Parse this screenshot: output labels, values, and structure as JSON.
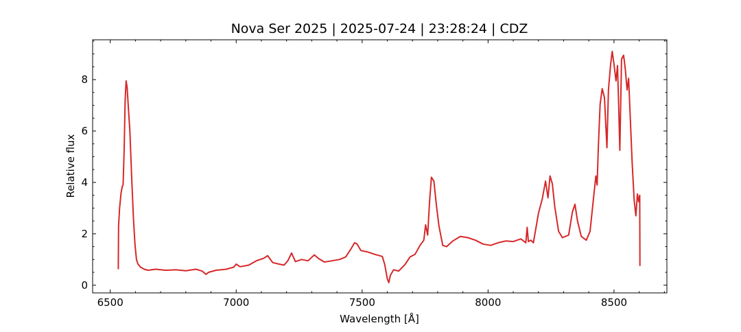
{
  "chart_data": {
    "type": "line",
    "title": "Nova Ser 2025 | 2025-07-24 | 23:28:24 | CDZ",
    "xlabel": "Wavelength [Å]",
    "ylabel": "Relative flux",
    "xlim": [
      6430,
      8710
    ],
    "ylim": [
      -0.3,
      9.55
    ],
    "x_ticks": [
      6500,
      7000,
      7500,
      8000,
      8500
    ],
    "y_ticks": [
      0,
      2,
      4,
      6,
      8
    ],
    "x_tick_labels": [
      "6500",
      "7000",
      "7500",
      "8000",
      "8500"
    ],
    "y_tick_labels": [
      "0",
      "2",
      "4",
      "6",
      "8"
    ],
    "grid": false,
    "legend": "none",
    "series": [
      {
        "color": "#d62728",
        "points": [
          [
            6532,
            0.62
          ],
          [
            6533,
            2.3
          ],
          [
            6537,
            3.0
          ],
          [
            6543,
            3.6
          ],
          [
            6548,
            3.85
          ],
          [
            6551,
            3.9
          ],
          [
            6555,
            5.2
          ],
          [
            6559,
            7.2
          ],
          [
            6563,
            7.95
          ],
          [
            6567,
            7.7
          ],
          [
            6572,
            6.9
          ],
          [
            6578,
            6.0
          ],
          [
            6585,
            4.2
          ],
          [
            6592,
            2.6
          ],
          [
            6598,
            1.6
          ],
          [
            6604,
            1.0
          ],
          [
            6610,
            0.82
          ],
          [
            6620,
            0.7
          ],
          [
            6635,
            0.62
          ],
          [
            6650,
            0.58
          ],
          [
            6680,
            0.62
          ],
          [
            6720,
            0.58
          ],
          [
            6760,
            0.6
          ],
          [
            6800,
            0.56
          ],
          [
            6840,
            0.62
          ],
          [
            6865,
            0.55
          ],
          [
            6880,
            0.42
          ],
          [
            6890,
            0.5
          ],
          [
            6920,
            0.58
          ],
          [
            6960,
            0.62
          ],
          [
            6990,
            0.7
          ],
          [
            7000,
            0.82
          ],
          [
            7015,
            0.72
          ],
          [
            7050,
            0.78
          ],
          [
            7080,
            0.95
          ],
          [
            7110,
            1.05
          ],
          [
            7125,
            1.15
          ],
          [
            7145,
            0.88
          ],
          [
            7170,
            0.82
          ],
          [
            7190,
            0.78
          ],
          [
            7205,
            0.95
          ],
          [
            7220,
            1.25
          ],
          [
            7235,
            0.92
          ],
          [
            7260,
            1.0
          ],
          [
            7285,
            0.95
          ],
          [
            7310,
            1.18
          ],
          [
            7325,
            1.05
          ],
          [
            7350,
            0.9
          ],
          [
            7380,
            0.95
          ],
          [
            7410,
            1.0
          ],
          [
            7435,
            1.1
          ],
          [
            7455,
            1.4
          ],
          [
            7470,
            1.65
          ],
          [
            7480,
            1.6
          ],
          [
            7495,
            1.35
          ],
          [
            7520,
            1.3
          ],
          [
            7550,
            1.2
          ],
          [
            7580,
            1.12
          ],
          [
            7590,
            0.8
          ],
          [
            7600,
            0.25
          ],
          [
            7606,
            0.1
          ],
          [
            7612,
            0.38
          ],
          [
            7625,
            0.6
          ],
          [
            7645,
            0.55
          ],
          [
            7670,
            0.8
          ],
          [
            7690,
            1.1
          ],
          [
            7710,
            1.2
          ],
          [
            7730,
            1.55
          ],
          [
            7745,
            1.75
          ],
          [
            7752,
            2.35
          ],
          [
            7760,
            1.95
          ],
          [
            7768,
            3.3
          ],
          [
            7775,
            4.2
          ],
          [
            7785,
            4.05
          ],
          [
            7795,
            3.1
          ],
          [
            7805,
            2.3
          ],
          [
            7820,
            1.55
          ],
          [
            7835,
            1.5
          ],
          [
            7860,
            1.72
          ],
          [
            7890,
            1.9
          ],
          [
            7920,
            1.85
          ],
          [
            7950,
            1.75
          ],
          [
            7980,
            1.6
          ],
          [
            8010,
            1.55
          ],
          [
            8040,
            1.65
          ],
          [
            8070,
            1.72
          ],
          [
            8100,
            1.7
          ],
          [
            8130,
            1.8
          ],
          [
            8150,
            1.65
          ],
          [
            8155,
            2.25
          ],
          [
            8160,
            1.7
          ],
          [
            8170,
            1.75
          ],
          [
            8180,
            1.65
          ],
          [
            8200,
            2.8
          ],
          [
            8215,
            3.35
          ],
          [
            8228,
            4.05
          ],
          [
            8238,
            3.4
          ],
          [
            8246,
            4.25
          ],
          [
            8255,
            3.95
          ],
          [
            8265,
            3.05
          ],
          [
            8280,
            2.1
          ],
          [
            8295,
            1.85
          ],
          [
            8320,
            1.95
          ],
          [
            8335,
            2.85
          ],
          [
            8345,
            3.15
          ],
          [
            8355,
            2.5
          ],
          [
            8370,
            1.9
          ],
          [
            8390,
            1.75
          ],
          [
            8405,
            2.1
          ],
          [
            8420,
            3.5
          ],
          [
            8428,
            4.25
          ],
          [
            8433,
            3.9
          ],
          [
            8438,
            5.4
          ],
          [
            8445,
            7.05
          ],
          [
            8453,
            7.65
          ],
          [
            8462,
            7.3
          ],
          [
            8468,
            6.1
          ],
          [
            8472,
            5.35
          ],
          [
            8478,
            7.6
          ],
          [
            8486,
            8.55
          ],
          [
            8493,
            9.1
          ],
          [
            8500,
            8.6
          ],
          [
            8508,
            7.95
          ],
          [
            8514,
            8.55
          ],
          [
            8518,
            7.2
          ],
          [
            8523,
            5.25
          ],
          [
            8530,
            8.8
          ],
          [
            8538,
            8.95
          ],
          [
            8545,
            8.4
          ],
          [
            8552,
            7.6
          ],
          [
            8558,
            8.05
          ],
          [
            8565,
            6.4
          ],
          [
            8572,
            4.8
          ],
          [
            8580,
            3.3
          ],
          [
            8587,
            2.7
          ],
          [
            8593,
            3.55
          ],
          [
            8598,
            3.25
          ],
          [
            8602,
            3.5
          ],
          [
            8603,
            0.75
          ]
        ]
      }
    ]
  }
}
